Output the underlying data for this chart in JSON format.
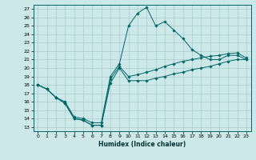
{
  "title": "",
  "xlabel": "Humidex (Indice chaleur)",
  "background_color": "#cce8e8",
  "grid_color": "#aacccc",
  "line_color": "#006666",
  "x_data": [
    0,
    1,
    2,
    3,
    4,
    5,
    6,
    7,
    8,
    9,
    10,
    11,
    12,
    13,
    14,
    15,
    16,
    17,
    18,
    19,
    20,
    21,
    22,
    23
  ],
  "line_max": [
    18,
    17.5,
    16.5,
    16.0,
    14.2,
    14.0,
    13.5,
    13.5,
    19.0,
    20.5,
    25.0,
    26.5,
    27.2,
    25.0,
    25.5,
    24.5,
    23.5,
    22.2,
    21.5,
    21.0,
    21.0,
    21.5,
    21.5,
    21.0
  ],
  "line_avg": [
    18,
    17.5,
    16.5,
    15.8,
    14.0,
    13.8,
    13.2,
    13.2,
    18.7,
    20.2,
    19.0,
    19.2,
    19.5,
    19.8,
    20.2,
    20.5,
    20.8,
    21.0,
    21.2,
    21.4,
    21.5,
    21.7,
    21.8,
    21.2
  ],
  "line_min": [
    18,
    17.5,
    16.5,
    15.8,
    14.0,
    13.8,
    13.2,
    13.2,
    18.2,
    20.0,
    18.5,
    18.5,
    18.5,
    18.8,
    19.0,
    19.3,
    19.5,
    19.8,
    20.0,
    20.2,
    20.5,
    20.8,
    21.0,
    21.0
  ],
  "ylim": [
    12.5,
    27.5
  ],
  "xlim": [
    -0.5,
    23.5
  ],
  "yticks": [
    13,
    14,
    15,
    16,
    17,
    18,
    19,
    20,
    21,
    22,
    23,
    24,
    25,
    26,
    27
  ],
  "xticks": [
    0,
    1,
    2,
    3,
    4,
    5,
    6,
    7,
    8,
    9,
    10,
    11,
    12,
    13,
    14,
    15,
    16,
    17,
    18,
    19,
    20,
    21,
    22,
    23
  ]
}
